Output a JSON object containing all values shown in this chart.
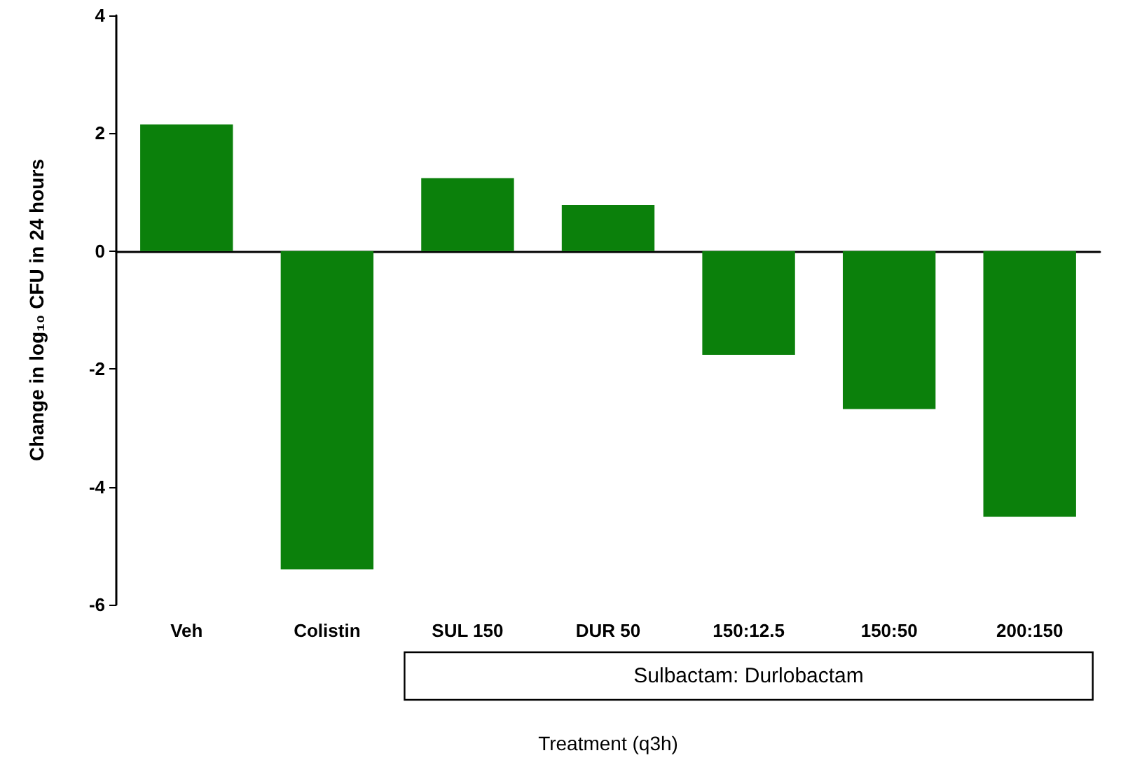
{
  "chart_data": {
    "type": "bar",
    "xlabel": "Treatment (q3h)",
    "ylabel": "Change in log₁₀ CFU in 24 hours",
    "categories": [
      "Veh",
      "Colistin",
      "SUL 150",
      "DUR 50",
      "150:12.5",
      "150:50",
      "200:150"
    ],
    "values": [
      2.15,
      -5.4,
      1.24,
      0.78,
      -1.76,
      -2.68,
      -4.51
    ],
    "color": "#0b800b",
    "ylim": [
      -6,
      4
    ],
    "yticks": [
      -6,
      -4,
      -2,
      0,
      2,
      4
    ],
    "annotations": [
      "Sulbactam: Durlobactam"
    ]
  }
}
